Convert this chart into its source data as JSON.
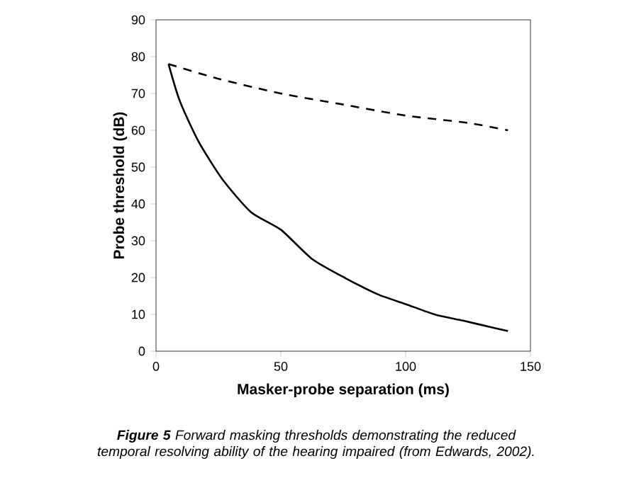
{
  "chart_data": {
    "type": "line",
    "xlabel": "Masker-probe separation (ms)",
    "ylabel": "Probe threshold (dB)",
    "xlim": [
      0,
      150
    ],
    "xticks": [
      0,
      50,
      100,
      150
    ],
    "ylim": [
      0,
      90
    ],
    "yticks": [
      0,
      10,
      20,
      30,
      40,
      50,
      60,
      70,
      80,
      90
    ],
    "series": [
      {
        "color": "#000000",
        "line_style": "dashed",
        "x": [
          5,
          25,
          50,
          75,
          100,
          125,
          141
        ],
        "values": [
          78,
          74,
          70,
          67,
          64,
          62,
          60
        ]
      },
      {
        "color": "#000000",
        "line_style": "solid",
        "x": [
          5,
          9.5,
          17,
          26.6,
          38,
          50,
          62.6,
          76,
          89,
          100,
          112,
          123,
          135,
          141
        ],
        "values": [
          78,
          68,
          57,
          46.7,
          37.8,
          33,
          25,
          19.8,
          15.4,
          12.8,
          9.9,
          8.3,
          6.4,
          5.5
        ]
      }
    ],
    "annotations": [
      "**Figure 5** Forward masking thresholds demonstrating the reduced temporal resolving ability of the hearing impaired (from Edwards, 2002)."
    ]
  }
}
